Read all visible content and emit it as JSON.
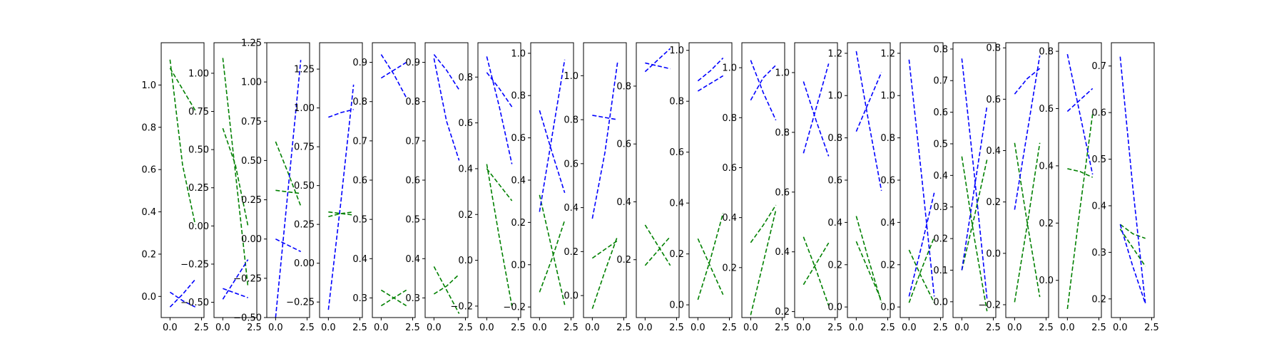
{
  "chart_data": [
    {
      "type": "line",
      "ylim": [
        -0.1,
        1.2
      ],
      "y_ticks": [
        0.0,
        0.2,
        0.4,
        0.6,
        0.8,
        1.0
      ],
      "y_tick_labels": [
        "0.0",
        "0.2",
        "0.4",
        "0.6",
        "0.8",
        "1.0"
      ],
      "x_ticks": [
        0,
        2.5
      ],
      "x_tick_labels": [
        "0.0",
        "2.5"
      ],
      "series": [
        {
          "color": "#008000",
          "values": [
            1.08,
            0.98,
            0.88
          ]
        },
        {
          "color": "#008000",
          "values": [
            1.12,
            0.62,
            0.34
          ]
        },
        {
          "color": "#0000ff",
          "values": [
            0.02,
            -0.02,
            -0.05
          ]
        },
        {
          "color": "#0000ff",
          "values": [
            -0.05,
            0.01,
            0.08
          ]
        }
      ]
    },
    {
      "type": "line",
      "ylim": [
        -0.6,
        1.2
      ],
      "y_ticks": [
        -0.5,
        -0.25,
        0.0,
        0.25,
        0.5,
        0.75,
        1.0
      ],
      "y_tick_labels": [
        "−0.50",
        "−0.25",
        "0.00",
        "0.25",
        "0.50",
        "0.75",
        "1.00"
      ],
      "x_ticks": [
        0,
        2.5
      ],
      "x_tick_labels": [
        "0.0",
        "2.5"
      ],
      "series": [
        {
          "color": "#008000",
          "values": [
            1.1,
            0.35,
            -0.4
          ]
        },
        {
          "color": "#008000",
          "values": [
            0.64,
            0.4,
            0.0
          ]
        },
        {
          "color": "#0000ff",
          "values": [
            -0.48,
            -0.35,
            -0.22
          ]
        },
        {
          "color": "#0000ff",
          "values": [
            -0.41,
            -0.44,
            -0.47
          ]
        }
      ]
    },
    {
      "type": "line",
      "ylim": [
        -0.5,
        1.25
      ],
      "y_ticks": [
        -0.5,
        -0.25,
        0.0,
        0.25,
        0.5,
        0.75,
        1.0,
        1.25
      ],
      "y_tick_labels": [
        "−0.50",
        "−0.25",
        "0.00",
        "0.25",
        "0.50",
        "0.75",
        "1.00",
        "1.25"
      ],
      "x_ticks": [
        0,
        2.5
      ],
      "x_tick_labels": [
        "0.0",
        "2.5"
      ],
      "series": [
        {
          "color": "#008000",
          "values": [
            0.62,
            0.42,
            0.21
          ]
        },
        {
          "color": "#008000",
          "values": [
            0.31,
            0.3,
            0.29
          ]
        },
        {
          "color": "#0000ff",
          "values": [
            0.0,
            -0.04,
            -0.08
          ]
        },
        {
          "color": "#0000ff",
          "values": [
            -0.5,
            0.32,
            1.14
          ]
        }
      ]
    },
    {
      "type": "line",
      "ylim": [
        -0.35,
        1.42
      ],
      "y_ticks": [
        -0.25,
        0.0,
        0.25,
        0.5,
        0.75,
        1.0,
        1.25
      ],
      "y_tick_labels": [
        "−0.25",
        "0.00",
        "0.25",
        "0.50",
        "0.75",
        "1.00",
        "1.25"
      ],
      "x_ticks": [
        0,
        2.5
      ],
      "x_tick_labels": [
        "0.0",
        "2.5"
      ],
      "series": [
        {
          "color": "#008000",
          "values": [
            0.33,
            0.32,
            0.31
          ]
        },
        {
          "color": "#008000",
          "values": [
            0.3,
            0.32,
            0.33
          ]
        },
        {
          "color": "#0000ff",
          "values": [
            -0.3,
            0.4,
            1.15
          ]
        },
        {
          "color": "#0000ff",
          "values": [
            0.94,
            0.97,
            0.99
          ]
        }
      ]
    },
    {
      "type": "line",
      "ylim": [
        0.25,
        0.95
      ],
      "y_ticks": [
        0.3,
        0.4,
        0.5,
        0.6,
        0.7,
        0.8,
        0.9
      ],
      "y_tick_labels": [
        "0.3",
        "0.4",
        "0.5",
        "0.6",
        "0.7",
        "0.8",
        "0.9"
      ],
      "x_ticks": [
        0,
        2.5
      ],
      "x_tick_labels": [
        "0.0",
        "2.5"
      ],
      "series": [
        {
          "color": "#008000",
          "values": [
            0.32,
            0.3,
            0.28
          ]
        },
        {
          "color": "#008000",
          "values": [
            0.28,
            0.3,
            0.32
          ]
        },
        {
          "color": "#0000ff",
          "values": [
            0.86,
            0.88,
            0.9
          ]
        },
        {
          "color": "#0000ff",
          "values": [
            0.92,
            0.87,
            0.81
          ]
        }
      ]
    },
    {
      "type": "line",
      "ylim": [
        0.25,
        0.95
      ],
      "y_ticks": [
        0.3,
        0.4,
        0.5,
        0.6,
        0.7,
        0.8,
        0.9
      ],
      "y_tick_labels": [
        "0.3",
        "0.4",
        "0.5",
        "0.6",
        "0.7",
        "0.8",
        "0.9"
      ],
      "x_ticks": [
        0,
        2.5
      ],
      "x_tick_labels": [
        "0.0",
        "2.5"
      ],
      "series": [
        {
          "color": "#008000",
          "values": [
            0.31,
            0.33,
            0.36
          ]
        },
        {
          "color": "#008000",
          "values": [
            0.38,
            0.32,
            0.26
          ]
        },
        {
          "color": "#0000ff",
          "values": [
            0.92,
            0.88,
            0.83
          ]
        },
        {
          "color": "#0000ff",
          "values": [
            0.91,
            0.75,
            0.65
          ]
        }
      ]
    },
    {
      "type": "line",
      "ylim": [
        -0.25,
        0.95
      ],
      "y_ticks": [
        -0.2,
        0.0,
        0.2,
        0.4,
        0.6,
        0.8
      ],
      "y_tick_labels": [
        "−0.2",
        "0.0",
        "0.2",
        "0.4",
        "0.6",
        "0.8"
      ],
      "x_ticks": [
        0,
        2.5
      ],
      "x_tick_labels": [
        "0.0",
        "2.5"
      ],
      "series": [
        {
          "color": "#008000",
          "values": [
            0.4,
            0.33,
            0.26
          ]
        },
        {
          "color": "#008000",
          "values": [
            0.42,
            0.1,
            -0.2
          ]
        },
        {
          "color": "#0000ff",
          "values": [
            0.89,
            0.67,
            0.42
          ]
        },
        {
          "color": "#0000ff",
          "values": [
            0.82,
            0.75,
            0.67
          ]
        }
      ]
    },
    {
      "type": "line",
      "ylim": [
        -0.25,
        1.05
      ],
      "y_ticks": [
        -0.2,
        0.0,
        0.2,
        0.4,
        0.6,
        0.8,
        1.0
      ],
      "y_tick_labels": [
        "−0.2",
        "0.0",
        "0.2",
        "0.4",
        "0.6",
        "0.8",
        "1.0"
      ],
      "x_ticks": [
        0,
        2.5
      ],
      "x_tick_labels": [
        "0.0",
        "2.5"
      ],
      "series": [
        {
          "color": "#008000",
          "values": [
            0.33,
            0.07,
            -0.19
          ]
        },
        {
          "color": "#008000",
          "values": [
            -0.13,
            0.03,
            0.21
          ]
        },
        {
          "color": "#0000ff",
          "values": [
            0.73,
            0.53,
            0.34
          ]
        },
        {
          "color": "#0000ff",
          "values": [
            0.25,
            0.61,
            0.97
          ]
        }
      ]
    },
    {
      "type": "line",
      "ylim": [
        -0.1,
        1.15
      ],
      "y_ticks": [
        0.0,
        0.2,
        0.4,
        0.6,
        0.8,
        1.0
      ],
      "y_tick_labels": [
        "0.0",
        "0.2",
        "0.4",
        "0.6",
        "0.8",
        "1.0"
      ],
      "x_ticks": [
        0,
        2.5
      ],
      "x_tick_labels": [
        "0.0",
        "2.5"
      ],
      "series": [
        {
          "color": "#008000",
          "values": [
            -0.06,
            0.11,
            0.27
          ]
        },
        {
          "color": "#008000",
          "values": [
            0.17,
            0.21,
            0.25
          ]
        },
        {
          "color": "#0000ff",
          "values": [
            0.35,
            0.65,
            1.06
          ]
        },
        {
          "color": "#0000ff",
          "values": [
            0.82,
            0.81,
            0.8
          ]
        }
      ]
    },
    {
      "type": "line",
      "ylim": [
        0.0,
        0.95
      ],
      "y_ticks": [
        0.2,
        0.4,
        0.6,
        0.8
      ],
      "y_tick_labels": [
        "0.2",
        "0.4",
        "0.6",
        "0.8"
      ],
      "x_ticks": [
        0,
        2.5
      ],
      "x_tick_labels": [
        "0.0",
        "2.5"
      ],
      "series": [
        {
          "color": "#008000",
          "values": [
            0.18,
            0.23,
            0.28
          ]
        },
        {
          "color": "#008000",
          "values": [
            0.32,
            0.25,
            0.18
          ]
        },
        {
          "color": "#0000ff",
          "values": [
            0.88,
            0.87,
            0.86
          ]
        },
        {
          "color": "#0000ff",
          "values": [
            0.85,
            0.89,
            0.93
          ]
        }
      ]
    },
    {
      "type": "line",
      "ylim": [
        -0.05,
        1.03
      ],
      "y_ticks": [
        0.0,
        0.2,
        0.4,
        0.6,
        0.8,
        1.0
      ],
      "y_tick_labels": [
        "0.0",
        "0.2",
        "0.4",
        "0.6",
        "0.8",
        "1.0"
      ],
      "x_ticks": [
        0,
        2.5
      ],
      "x_tick_labels": [
        "0.0",
        "2.5"
      ],
      "series": [
        {
          "color": "#008000",
          "values": [
            0.26,
            0.15,
            0.04
          ]
        },
        {
          "color": "#008000",
          "values": [
            0.02,
            0.18,
            0.36
          ]
        },
        {
          "color": "#0000ff",
          "values": [
            0.84,
            0.87,
            0.9
          ]
        },
        {
          "color": "#0000ff",
          "values": [
            0.88,
            0.92,
            0.97
          ]
        }
      ]
    },
    {
      "type": "line",
      "ylim": [
        0.0,
        1.1
      ],
      "y_ticks": [
        0.2,
        0.4,
        0.6,
        0.8,
        1.0
      ],
      "y_tick_labels": [
        "0.2",
        "0.4",
        "0.6",
        "0.8",
        "1.0"
      ],
      "x_ticks": [
        0,
        2.5
      ],
      "x_tick_labels": [
        "0.0",
        "2.5"
      ],
      "series": [
        {
          "color": "#008000",
          "values": [
            0.01,
            0.22,
            0.43
          ]
        },
        {
          "color": "#008000",
          "values": [
            0.3,
            0.37,
            0.45
          ]
        },
        {
          "color": "#0000ff",
          "values": [
            0.87,
            0.96,
            1.01
          ]
        },
        {
          "color": "#0000ff",
          "values": [
            1.03,
            0.9,
            0.79
          ]
        }
      ]
    },
    {
      "type": "line",
      "ylim": [
        0.18,
        1.1
      ],
      "y_ticks": [
        0.2,
        0.4,
        0.6,
        0.8,
        1.0
      ],
      "y_tick_labels": [
        "0.2",
        "0.4",
        "0.6",
        "0.8",
        "1.0"
      ],
      "x_ticks": [
        0,
        2.5
      ],
      "x_tick_labels": [
        "0.0",
        "2.5"
      ],
      "series": [
        {
          "color": "#008000",
          "values": [
            0.29,
            0.36,
            0.43
          ]
        },
        {
          "color": "#008000",
          "values": [
            0.45,
            0.34,
            0.22
          ]
        },
        {
          "color": "#0000ff",
          "values": [
            0.97,
            0.84,
            0.72
          ]
        },
        {
          "color": "#0000ff",
          "values": [
            0.73,
            0.88,
            1.03
          ]
        }
      ]
    },
    {
      "type": "line",
      "ylim": [
        -0.05,
        1.25
      ],
      "y_ticks": [
        0.0,
        0.2,
        0.4,
        0.6,
        0.8,
        1.0,
        1.2
      ],
      "y_tick_labels": [
        "0.0",
        "0.2",
        "0.4",
        "0.6",
        "0.8",
        "1.0",
        "1.2"
      ],
      "x_ticks": [
        0,
        2.5
      ],
      "x_tick_labels": [
        "0.0",
        "2.5"
      ],
      "series": [
        {
          "color": "#008000",
          "values": [
            0.43,
            0.22,
            0.02
          ]
        },
        {
          "color": "#008000",
          "values": [
            0.31,
            0.17,
            0.03
          ]
        },
        {
          "color": "#0000ff",
          "values": [
            0.83,
            0.97,
            1.11
          ]
        },
        {
          "color": "#0000ff",
          "values": [
            1.21,
            0.87,
            0.55
          ]
        }
      ]
    },
    {
      "type": "line",
      "ylim": [
        -0.05,
        1.25
      ],
      "y_ticks": [
        0.0,
        0.2,
        0.4,
        0.6,
        0.8,
        1.0,
        1.2
      ],
      "y_tick_labels": [
        "0.0",
        "0.2",
        "0.4",
        "0.6",
        "0.8",
        "1.0",
        "1.2"
      ],
      "x_ticks": [
        0,
        2.5
      ],
      "x_tick_labels": [
        "0.0",
        "2.5"
      ],
      "series": [
        {
          "color": "#008000",
          "values": [
            0.27,
            0.14,
            0.02
          ]
        },
        {
          "color": "#008000",
          "values": [
            0.02,
            0.18,
            0.33
          ]
        },
        {
          "color": "#0000ff",
          "values": [
            1.17,
            0.62,
            0.05
          ]
        },
        {
          "color": "#0000ff",
          "values": [
            0.05,
            0.29,
            0.54
          ]
        }
      ]
    },
    {
      "type": "line",
      "ylim": [
        -0.05,
        0.82
      ],
      "y_ticks": [
        0.0,
        0.1,
        0.2,
        0.3,
        0.4,
        0.5,
        0.6,
        0.7,
        0.8
      ],
      "y_tick_labels": [
        "0.0",
        "0.1",
        "0.2",
        "0.3",
        "0.4",
        "0.5",
        "0.6",
        "0.7",
        "0.8"
      ],
      "x_ticks": [
        0,
        2.5
      ],
      "x_tick_labels": [
        "0.0",
        "2.5"
      ],
      "series": [
        {
          "color": "#008000",
          "values": [
            0.1,
            0.27,
            0.45
          ]
        },
        {
          "color": "#008000",
          "values": [
            0.46,
            0.2,
            -0.03
          ]
        },
        {
          "color": "#0000ff",
          "values": [
            0.77,
            0.4,
            0.01
          ]
        },
        {
          "color": "#0000ff",
          "values": [
            0.1,
            0.36,
            0.62
          ]
        }
      ]
    },
    {
      "type": "line",
      "ylim": [
        -0.25,
        0.82
      ],
      "y_ticks": [
        -0.2,
        0.0,
        0.2,
        0.4,
        0.6,
        0.8
      ],
      "y_tick_labels": [
        "−0.2",
        "0.0",
        "0.2",
        "0.4",
        "0.6",
        "0.8"
      ],
      "x_ticks": [
        0,
        2.5
      ],
      "x_tick_labels": [
        "0.0",
        "2.5"
      ],
      "series": [
        {
          "color": "#008000",
          "values": [
            0.43,
            0.12,
            -0.17
          ]
        },
        {
          "color": "#008000",
          "values": [
            -0.19,
            0.11,
            0.43
          ]
        },
        {
          "color": "#0000ff",
          "values": [
            0.17,
            0.47,
            0.77
          ]
        },
        {
          "color": "#0000ff",
          "values": [
            0.62,
            0.68,
            0.72
          ]
        }
      ]
    },
    {
      "type": "line",
      "ylim": [
        -0.13,
        0.83
      ],
      "y_ticks": [
        0.0,
        0.2,
        0.4,
        0.6,
        0.8
      ],
      "y_tick_labels": [
        "0.0",
        "0.2",
        "0.4",
        "0.6",
        "0.8"
      ],
      "x_ticks": [
        0,
        2.5
      ],
      "x_tick_labels": [
        "0.0",
        "2.5"
      ],
      "series": [
        {
          "color": "#008000",
          "values": [
            -0.1,
            0.25,
            0.58
          ]
        },
        {
          "color": "#008000",
          "values": [
            0.39,
            0.38,
            0.36
          ]
        },
        {
          "color": "#0000ff",
          "values": [
            0.59,
            0.63,
            0.67
          ]
        },
        {
          "color": "#0000ff",
          "values": [
            0.79,
            0.58,
            0.37
          ]
        }
      ]
    },
    {
      "type": "line",
      "ylim": [
        0.16,
        0.75
      ],
      "y_ticks": [
        0.2,
        0.3,
        0.4,
        0.5,
        0.6,
        0.7
      ],
      "y_tick_labels": [
        "0.2",
        "0.3",
        "0.4",
        "0.5",
        "0.6",
        "0.7"
      ],
      "x_ticks": [
        0,
        2.5
      ],
      "x_tick_labels": [
        "0.0",
        "2.5"
      ],
      "series": [
        {
          "color": "#008000",
          "values": [
            0.36,
            0.34,
            0.33
          ]
        },
        {
          "color": "#008000",
          "values": [
            0.35,
            0.31,
            0.27
          ]
        },
        {
          "color": "#0000ff",
          "values": [
            0.72,
            0.44,
            0.19
          ]
        },
        {
          "color": "#0000ff",
          "values": [
            0.36,
            0.27,
            0.19
          ]
        }
      ]
    }
  ]
}
